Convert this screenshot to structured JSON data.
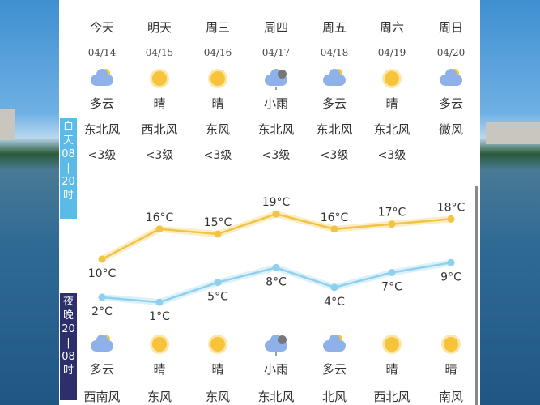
{
  "days": [
    {
      "name": "今天",
      "date": "04/14",
      "day_weather": "多云",
      "day_icon": "partly-cloudy",
      "day_wind": "东北风",
      "day_level": "<3级",
      "high": "10°C",
      "low": "2°C",
      "night_icon": "partly-cloudy",
      "night_weather": "多云",
      "night_wind": "西南风"
    },
    {
      "name": "明天",
      "date": "04/15",
      "day_weather": "晴",
      "day_icon": "sunny",
      "day_wind": "西北风",
      "day_level": "<3级",
      "high": "16°C",
      "low": "1°C",
      "night_icon": "sunny",
      "night_weather": "晴",
      "night_wind": "东风"
    },
    {
      "name": "周三",
      "date": "04/16",
      "day_weather": "晴",
      "day_icon": "sunny",
      "day_wind": "东风",
      "day_level": "<3级",
      "high": "15°C",
      "low": "5°C",
      "night_icon": "sunny",
      "night_weather": "晴",
      "night_wind": "东风"
    },
    {
      "name": "周四",
      "date": "04/17",
      "day_weather": "小雨",
      "day_icon": "light-rain",
      "day_wind": "东北风",
      "day_level": "<3级",
      "high": "19°C",
      "low": "8°C",
      "night_icon": "light-rain",
      "night_weather": "小雨",
      "night_wind": "东北风"
    },
    {
      "name": "周五",
      "date": "04/18",
      "day_weather": "多云",
      "day_icon": "partly-cloudy",
      "day_wind": "东北风",
      "day_level": "<3级",
      "high": "16°C",
      "low": "4°C",
      "night_icon": "partly-cloudy",
      "night_weather": "多云",
      "night_wind": "北风"
    },
    {
      "name": "周六",
      "date": "04/19",
      "day_weather": "晴",
      "day_icon": "sunny",
      "day_wind": "东北风",
      "day_level": "<3级",
      "high": "17°C",
      "low": "7°C",
      "night_icon": "sunny",
      "night_weather": "晴",
      "night_wind": "西北风"
    },
    {
      "name": "周日",
      "date": "04/20",
      "day_weather": "多云",
      "day_icon": "partly-cloudy",
      "day_wind": "微风",
      "day_level": "",
      "high": "18°C",
      "low": "9°C",
      "night_icon": "sunny",
      "night_weather": "晴",
      "night_wind": "南风"
    }
  ],
  "day_tag": [
    "白",
    "天",
    "08",
    "|",
    "20",
    "时"
  ],
  "night_tag": [
    "夜",
    "晚",
    "20",
    "|",
    "08",
    "时"
  ],
  "high_values": [
    10,
    16,
    15,
    19,
    16,
    17,
    18
  ],
  "low_values": [
    2,
    1,
    5,
    8,
    4,
    7,
    9
  ],
  "colors": {
    "day_tag": "#5bbbe8",
    "night_tag": "#2c2f6a",
    "high_line": "#f2c443",
    "low_line": "#8fd0ef"
  }
}
